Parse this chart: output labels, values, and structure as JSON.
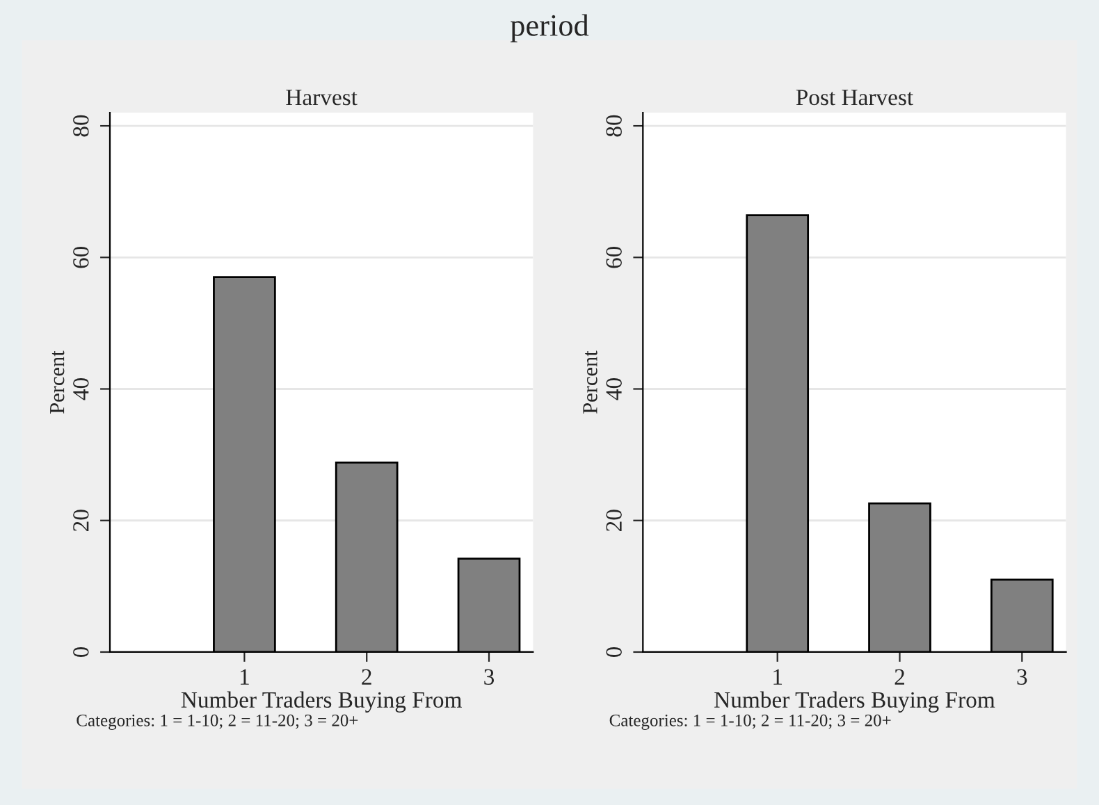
{
  "chart_data": [
    {
      "type": "bar",
      "title": "Harvest",
      "xlabel": "Number Traders Buying From",
      "ylabel": "Percent",
      "x": [
        1,
        2,
        3
      ],
      "values": [
        57.0,
        28.8,
        14.2
      ],
      "color": "#808080",
      "xlim": [
        -0.1,
        3.36
      ],
      "xticks": [
        1,
        2,
        3
      ],
      "ylim": [
        0,
        82
      ],
      "yticks": [
        0,
        20,
        40,
        60,
        80
      ],
      "grid": "y",
      "annotations": [
        "period",
        "Categories: 1 = 1-10; 2 = 11-20; 3 = 20+"
      ]
    },
    {
      "type": "bar",
      "title": "Post Harvest",
      "xlabel": "Number Traders Buying From",
      "ylabel": "Percent",
      "x": [
        1,
        2,
        3
      ],
      "values": [
        66.4,
        22.6,
        11.0
      ],
      "color": "#808080",
      "xlim": [
        -0.1,
        3.36
      ],
      "xticks": [
        1,
        2,
        3
      ],
      "ylim": [
        0,
        82
      ],
      "yticks": [
        0,
        20,
        40,
        60,
        80
      ],
      "grid": "y",
      "annotations": [
        "Categories: 1 = 1-10; 2 = 11-20; 3 = 20+"
      ]
    }
  ]
}
